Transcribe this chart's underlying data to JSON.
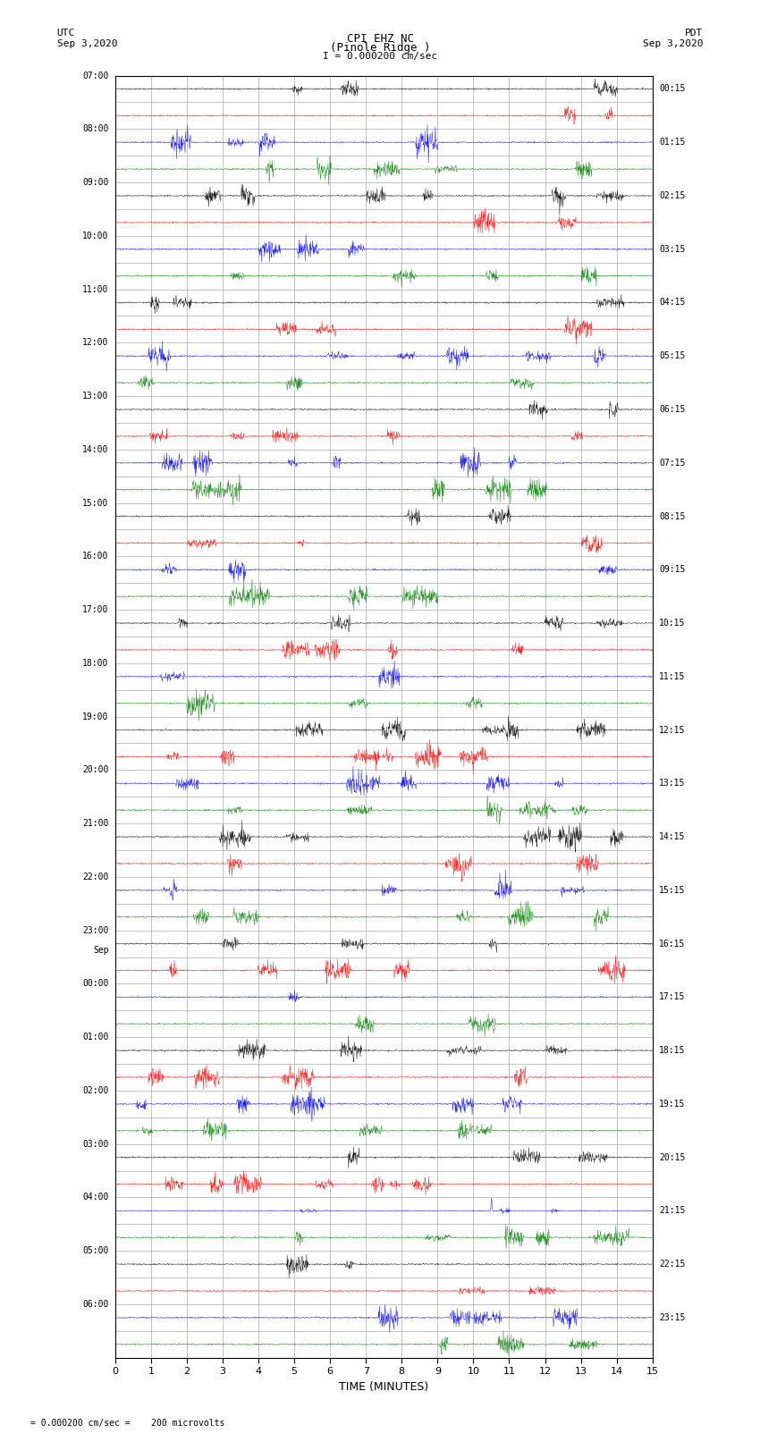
{
  "title_line1": "CPI EHZ NC",
  "title_line2": "(Pinole Ridge )",
  "scale_label": "I = 0.000200 cm/sec",
  "left_label_top": "UTC",
  "left_label_date": "Sep 3,2020",
  "right_label_top": "PDT",
  "right_label_date": "Sep 3,2020",
  "bottom_label": "TIME (MINUTES)",
  "footer_label": "= 0.000200 cm/sec =    200 microvolts",
  "utc_times": [
    "07:00",
    "",
    "08:00",
    "",
    "09:00",
    "",
    "10:00",
    "",
    "11:00",
    "",
    "12:00",
    "",
    "13:00",
    "",
    "14:00",
    "",
    "15:00",
    "",
    "16:00",
    "",
    "17:00",
    "",
    "18:00",
    "",
    "19:00",
    "",
    "20:00",
    "",
    "21:00",
    "",
    "22:00",
    "",
    "23:00",
    "",
    "00:00",
    "",
    "01:00",
    "",
    "02:00",
    "",
    "03:00",
    "",
    "04:00",
    "",
    "05:00",
    "",
    "06:00",
    ""
  ],
  "pdt_times": [
    "00:15",
    "",
    "01:15",
    "",
    "02:15",
    "",
    "03:15",
    "",
    "04:15",
    "",
    "05:15",
    "",
    "06:15",
    "",
    "07:15",
    "",
    "08:15",
    "",
    "09:15",
    "",
    "10:15",
    "",
    "11:15",
    "",
    "12:15",
    "",
    "13:15",
    "",
    "14:15",
    "",
    "15:15",
    "",
    "16:15",
    "",
    "17:15",
    "",
    "18:15",
    "",
    "19:15",
    "",
    "20:15",
    "",
    "21:15",
    "",
    "22:15",
    "",
    "23:15",
    ""
  ],
  "sep_label_row": 33,
  "colors": [
    "black",
    "red",
    "blue",
    "green"
  ],
  "n_rows": 48,
  "n_minutes": 15,
  "xmin": 0,
  "xmax": 15,
  "bg_color": "white",
  "grid_color": "#aaaaaa",
  "text_color": "black",
  "spike_row": 42,
  "spike_minute": 10.5
}
